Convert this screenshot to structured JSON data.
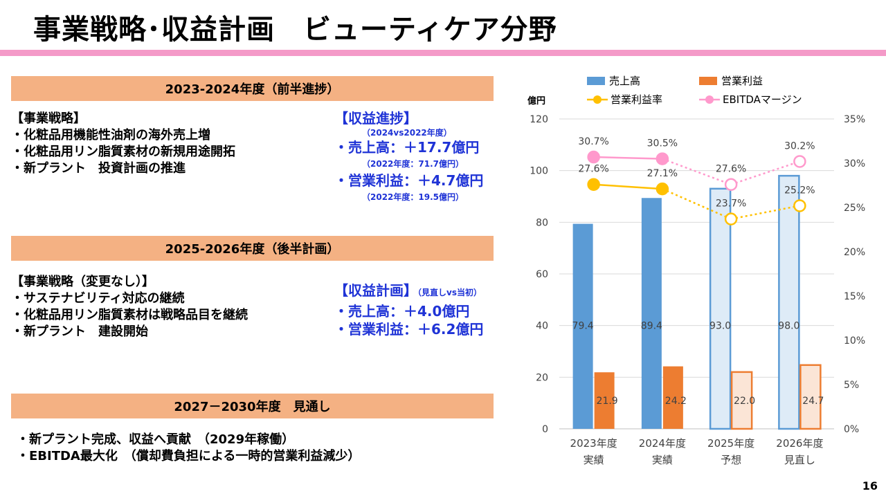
{
  "title": "事業戦略･収益計画　ビューティケア分野",
  "page_number": "16",
  "section1": {
    "header": "2023-2024年度（前半進捗）",
    "strategy_heading": "【事業戦略】",
    "strategy_items": [
      "・化粧品用機能性油剤の海外売上増",
      "・化粧品用リン脂質素材の新規用途開拓",
      "・新プラント　投資計画の推進"
    ],
    "progress_heading": "【収益進捗】",
    "progress_note": "（2024vs2022年度）",
    "sales": "・売上高：＋17.7億円",
    "sales_note": "（2022年度：71.7億円）",
    "profit": "・営業利益：＋4.7億円",
    "profit_note": "（2022年度：19.5億円）"
  },
  "section2": {
    "header": "2025-2026年度（後半計画）",
    "strategy_heading": "【事業戦略（変更なし）】",
    "strategy_items": [
      "・サステナビリティ対応の継続",
      "・化粧品用リン脂質素材は戦略品目を継続",
      "・新プラント　建設開始"
    ],
    "plan_heading": "【収益計画】",
    "plan_note": "（見直しvs当初）",
    "sales": "・売上高：＋4.0億円",
    "profit": "・営業利益：＋6.2億円"
  },
  "section3": {
    "header": "2027－2030年度　見通し",
    "items": [
      "・新プラント完成、収益へ貢献　（2029年稼働）",
      "・EBITDA最大化　（償却費負担による一時的営業利益減少）"
    ]
  },
  "chart_data": {
    "type": "bar",
    "ylabel": "億円",
    "ylim": [
      0,
      120
    ],
    "yticks": [
      0,
      20,
      40,
      60,
      80,
      100,
      120
    ],
    "y2ticks": [
      "0%",
      "5%",
      "10%",
      "15%",
      "20%",
      "25%",
      "30%",
      "35%"
    ],
    "y2lim": [
      0,
      35
    ],
    "categories": [
      [
        "2023年度",
        "実績"
      ],
      [
        "2024年度",
        "実績"
      ],
      [
        "2025年度",
        "予想"
      ],
      [
        "2026年度",
        "見直し"
      ]
    ],
    "series": [
      {
        "name": "売上高",
        "kind": "bar",
        "values": [
          79.4,
          89.4,
          93.0,
          98.0
        ],
        "labels": [
          "79.4",
          "89.4",
          "93.0",
          "98.0"
        ],
        "color": "#5b9bd5",
        "light": "#deebf7"
      },
      {
        "name": "営業利益",
        "kind": "bar",
        "values": [
          21.9,
          24.2,
          22.0,
          24.7
        ],
        "labels": [
          "21.9",
          "24.2",
          "22.0",
          "24.7"
        ],
        "color": "#ed7d31",
        "light": "#fbe5d6"
      },
      {
        "name": "営業利益率",
        "kind": "line",
        "values": [
          27.6,
          27.1,
          23.7,
          25.2
        ],
        "labels": [
          "27.6%",
          "27.1%",
          "23.7%",
          "25.2%"
        ],
        "color": "#ffc000"
      },
      {
        "name": "EBITDAマージン",
        "kind": "line",
        "values": [
          30.7,
          30.5,
          27.6,
          30.2
        ],
        "labels": [
          "30.7%",
          "30.5%",
          "27.6%",
          "30.2%"
        ],
        "color": "#ff99cc"
      }
    ],
    "forecast_from_index": 2
  }
}
